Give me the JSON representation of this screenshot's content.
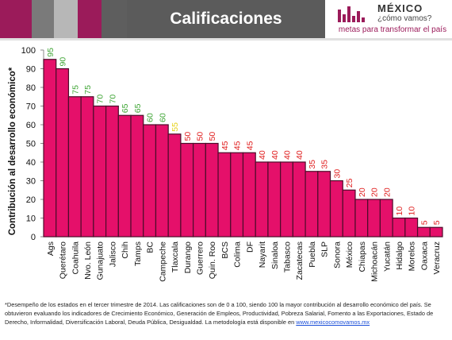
{
  "header": {
    "title": "Calificaciones",
    "stripe_colors": [
      "#9b1b5a",
      "#7a7a7a",
      "#b7b7b7",
      "#9b1b5a",
      "#5e5e5e"
    ]
  },
  "logo": {
    "name": "MÉXICO",
    "sub": "¿cómo vamos?",
    "tagline": "metas para transformar el país",
    "icon": "bar-mark-logo"
  },
  "colors": {
    "bar": "#e5106a",
    "bar_edge": "#4d0c2a",
    "label_green": "#3fa535",
    "label_yellow": "#e6d21a",
    "label_red": "#e02020"
  },
  "chart_data": {
    "type": "bar",
    "ylabel": "Contribución al desarrollo económico*",
    "xlabel": "",
    "ylim": [
      0,
      100
    ],
    "yticks": [
      0,
      10,
      20,
      30,
      40,
      50,
      60,
      70,
      80,
      90,
      100
    ],
    "grid": false,
    "categories": [
      "Ags",
      "Querétaro",
      "Coahuila",
      "Nvo. León",
      "Gunajuato",
      "Jalisco",
      "Chih",
      "Tamps",
      "BC",
      "Campeche",
      "Tlaxcala",
      "Durango",
      "Guerrero",
      "Quin. Roo",
      "BCS",
      "Colima",
      "DF",
      "Nayarit",
      "Sinaloa",
      "Tabasco",
      "Zacatecas",
      "Puebla",
      "SLP",
      "Sonora",
      "México",
      "Chiapas",
      "Michoacán",
      "Yucatán",
      "Hidalgo",
      "Morelos",
      "Oaxaca",
      "Veracruz"
    ],
    "values": [
      95,
      90,
      75,
      75,
      70,
      70,
      65,
      65,
      60,
      60,
      55,
      50,
      50,
      50,
      45,
      45,
      45,
      40,
      40,
      40,
      40,
      35,
      35,
      30,
      25,
      20,
      20,
      20,
      10,
      10,
      5,
      5
    ],
    "label_colors": [
      "green",
      "green",
      "green",
      "green",
      "green",
      "green",
      "green",
      "green",
      "green",
      "green",
      "yellow",
      "red",
      "red",
      "red",
      "red",
      "red",
      "red",
      "red",
      "red",
      "red",
      "red",
      "red",
      "red",
      "red",
      "red",
      "red",
      "red",
      "red",
      "red",
      "red",
      "red",
      "red"
    ]
  },
  "footnote": {
    "text": "*Desempeño de los estados en el tercer trimestre de 2014. Las calificaciones son de 0 a 100, siendo 100 la mayor contribución al desarrollo económico del país. Se obtuvieron evaluando los indicadores de Crecimiento Económico, Generación de Empleos, Productividad, Pobreza Salarial, Fomento a las Exportaciones, Estado de Derecho, Informalidad, Diversificación Laboral, Deuda Pública, Desigualdad. La metodología está disponible en ",
    "link": "www.mexicocomovamos.mx"
  }
}
